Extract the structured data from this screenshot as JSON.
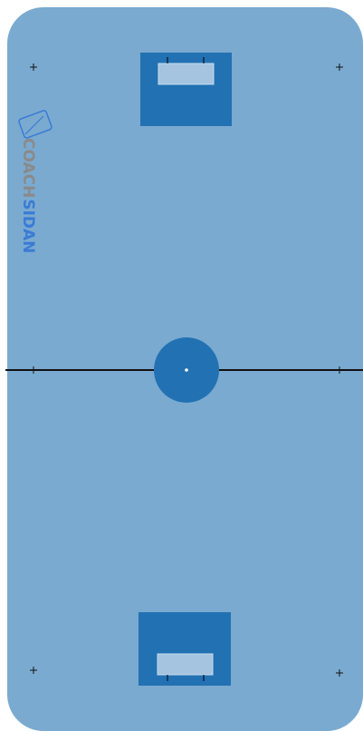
{
  "logo": {
    "first": "COACH",
    "second": "SIDAN"
  }
}
